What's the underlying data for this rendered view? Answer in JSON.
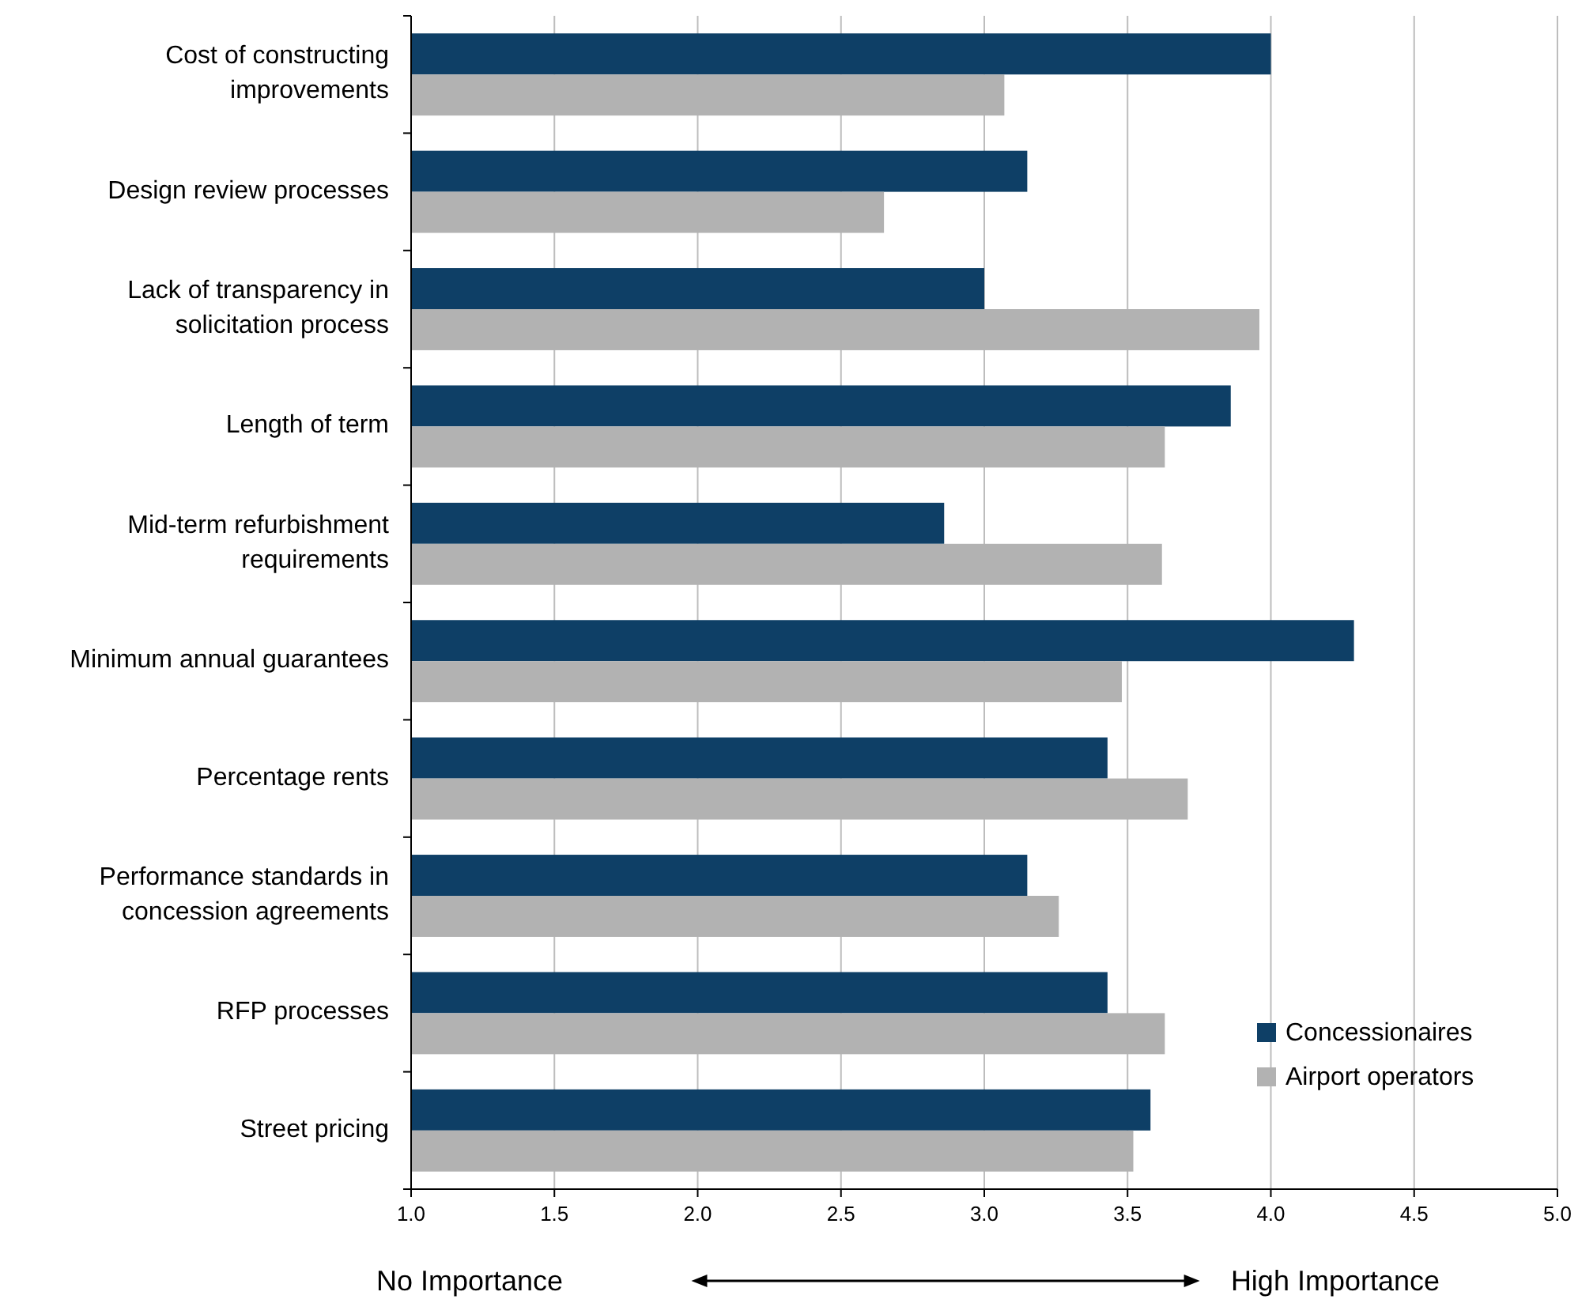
{
  "chart_data": {
    "type": "bar",
    "orientation": "horizontal",
    "categories": [
      "Cost of constructing improvements",
      "Design review processes",
      "Lack of transparency in solicitation process",
      "Length of term",
      "Mid-term refurbishment requirements",
      "Minimum annual guarantees",
      "Percentage rents",
      "Performance standards in concession agreements",
      "RFP processes",
      "Street pricing"
    ],
    "series": [
      {
        "name": "Concessionaires",
        "color": "#0e3f66",
        "values": [
          4.0,
          3.15,
          3.0,
          3.86,
          2.86,
          4.29,
          3.43,
          3.15,
          3.43,
          3.58
        ]
      },
      {
        "name": "Airport operators",
        "color": "#b2b2b2",
        "values": [
          3.07,
          2.65,
          3.96,
          3.63,
          3.62,
          3.48,
          3.71,
          3.26,
          3.63,
          3.52
        ]
      }
    ],
    "xlim": [
      1,
      5
    ],
    "xticks": [
      {
        "value": 1,
        "label": "1.0"
      },
      1.5,
      {
        "value": 2,
        "label": "2.0"
      },
      2.5,
      {
        "value": 3,
        "label": "3.0"
      },
      3.5,
      {
        "value": 4,
        "label": "4.0"
      },
      4.5,
      {
        "value": 5,
        "label": "5.0"
      }
    ],
    "grid": "x",
    "legend": "bottom right",
    "annotations": [
      "No Importance",
      "High Importance"
    ]
  }
}
